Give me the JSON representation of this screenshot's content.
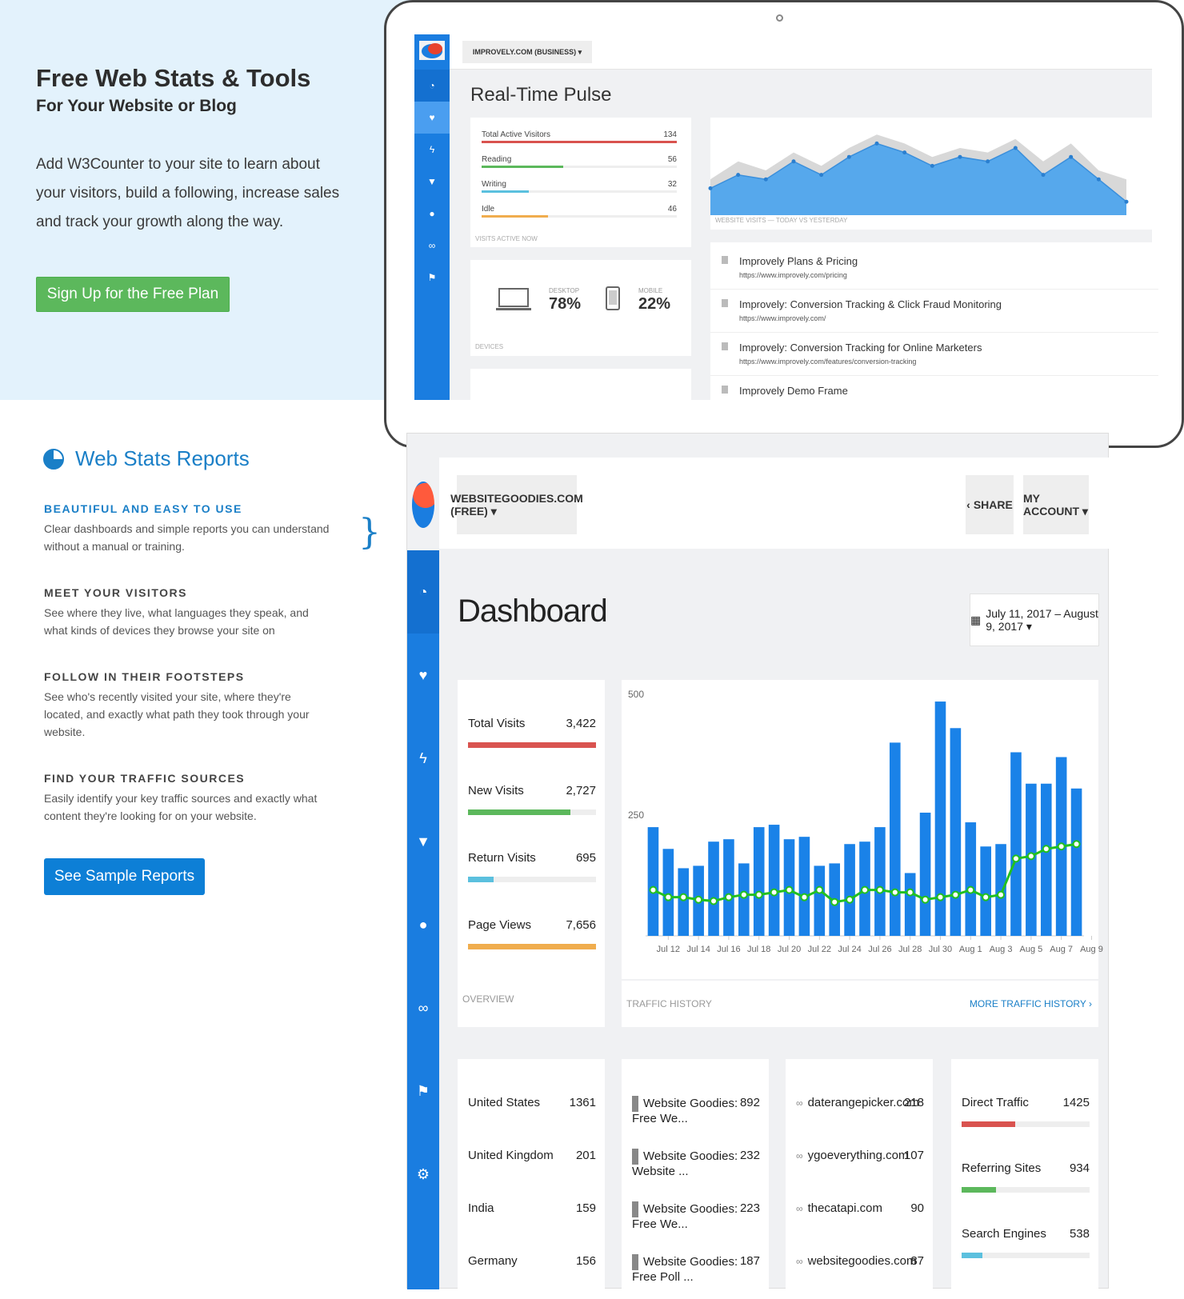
{
  "hero": {
    "title": "Free Web Stats & Tools",
    "subtitle": "For Your Website or Blog",
    "description": "Add W3Counter to your site to learn about your visitors, build a following, increase sales and track your growth along the way.",
    "cta_label": "Sign Up for the Free Plan"
  },
  "preview": {
    "site_selector": "IMPROVELY.COM (BUSINESS) ▾",
    "page_title": "Real-Time Pulse",
    "active": {
      "caption": "VISITS ACTIVE NOW",
      "rows": [
        {
          "label": "Total Active Visitors",
          "value": "134",
          "fill": 1.0,
          "color": "#d9534f"
        },
        {
          "label": "Reading",
          "value": "56",
          "fill": 0.42,
          "color": "#5cb85c"
        },
        {
          "label": "Writing",
          "value": "32",
          "fill": 0.24,
          "color": "#5bc0de"
        },
        {
          "label": "Idle",
          "value": "46",
          "fill": 0.34,
          "color": "#f0ad4e"
        }
      ]
    },
    "devices": {
      "caption": "DEVICES",
      "desktop_label": "DESKTOP",
      "desktop_value": "78%",
      "mobile_label": "MOBILE",
      "mobile_value": "22%"
    },
    "visits_caption": "WEBSITE VISITS — TODAY VS YESTERDAY",
    "pages": [
      {
        "title": "Improvely Plans & Pricing",
        "url": "https://www.improvely.com/pricing"
      },
      {
        "title": "Improvely: Conversion Tracking & Click Fraud Monitoring",
        "url": "https://www.improvely.com/"
      },
      {
        "title": "Improvely: Conversion Tracking for Online Marketers",
        "url": "https://www.improvely.com/features/conversion-tracking"
      },
      {
        "title": "Improvely Demo Frame",
        "url": ""
      }
    ]
  },
  "features": {
    "section_title": "Web Stats Reports",
    "items": [
      {
        "heading": "BEAUTIFUL AND EASY TO USE",
        "text": "Clear dashboards and simple reports you can understand without a manual or training."
      },
      {
        "heading": "MEET YOUR VISITORS",
        "text": "See where they live, what languages they speak, and what kinds of devices they browse your site on"
      },
      {
        "heading": "FOLLOW IN THEIR FOOTSTEPS",
        "text": "See who's recently visited your site, where they're located, and exactly what path they took through your website."
      },
      {
        "heading": "FIND YOUR TRAFFIC SOURCES",
        "text": "Easily identify your key traffic sources and exactly what content they're looking for on your website."
      }
    ],
    "cta_label": "See Sample Reports"
  },
  "dashboard": {
    "site_selector": "WEBSITEGOODIES.COM (FREE) ▾",
    "share_label": "SHARE",
    "account_label": "MY ACCOUNT ▾",
    "title": "Dashboard",
    "date_range": "July 11, 2017 – August 9, 2017 ▾",
    "overview": {
      "caption": "OVERVIEW",
      "rows": [
        {
          "label": "Total Visits",
          "value": "3,422",
          "fill": 1.0,
          "color": "#d9534f"
        },
        {
          "label": "New Visits",
          "value": "2,727",
          "fill": 0.8,
          "color": "#5cb85c"
        },
        {
          "label": "Return Visits",
          "value": "695",
          "fill": 0.2,
          "color": "#5bc0de"
        },
        {
          "label": "Page Views",
          "value": "7,656",
          "fill": 1.0,
          "color": "#f0ad4e"
        }
      ]
    },
    "traffic_caption": "TRAFFIC HISTORY",
    "more_link": "MORE TRAFFIC HISTORY ›",
    "countries": [
      {
        "label": "United States",
        "value": "1361"
      },
      {
        "label": "United Kingdom",
        "value": "201"
      },
      {
        "label": "India",
        "value": "159"
      },
      {
        "label": "Germany",
        "value": "156"
      }
    ],
    "pages": [
      {
        "label": "Website Goodies: Free We...",
        "value": "892"
      },
      {
        "label": "Website Goodies: Website ...",
        "value": "232"
      },
      {
        "label": "Website Goodies: Free We...",
        "value": "223"
      },
      {
        "label": "Website Goodies: Free Poll ...",
        "value": "187"
      }
    ],
    "referrers": [
      {
        "label": "daterangepicker.com",
        "value": "218"
      },
      {
        "label": "ygoeverything.com",
        "value": "107"
      },
      {
        "label": "thecatapi.com",
        "value": "90"
      },
      {
        "label": "websitegoodies.com",
        "value": "87"
      }
    ],
    "sources": [
      {
        "label": "Direct Traffic",
        "value": "1425",
        "fill": 0.42,
        "color": "#d9534f"
      },
      {
        "label": "Referring Sites",
        "value": "934",
        "fill": 0.27,
        "color": "#5cb85c"
      },
      {
        "label": "Search Engines",
        "value": "538",
        "fill": 0.16,
        "color": "#5bc0de"
      }
    ]
  },
  "chart_data": [
    {
      "type": "area",
      "title": "",
      "xlabel": "",
      "ylabel": "",
      "series": [
        {
          "values": [
            8,
            12,
            10,
            14,
            11,
            15,
            18,
            16,
            13,
            15,
            14,
            17,
            12,
            16,
            10,
            8
          ]
        },
        {
          "values": [
            6,
            9,
            8,
            12,
            9,
            13,
            16,
            14,
            11,
            13,
            12,
            15,
            9,
            13,
            8,
            3
          ]
        }
      ]
    },
    {
      "type": "bar",
      "title": "",
      "xlabel": "",
      "ylabel": "",
      "ylim": [
        0,
        500
      ],
      "yticks": [
        250,
        500
      ],
      "tick_labels": [
        "Jul 12",
        "Jul 14",
        "Jul 16",
        "Jul 18",
        "Jul 20",
        "Jul 22",
        "Jul 24",
        "Jul 26",
        "Jul 28",
        "Jul 30",
        "Aug 1",
        "Aug 3",
        "Aug 5",
        "Aug 7",
        "Aug 9"
      ],
      "series": [
        {
          "values": [
            225,
            180,
            140,
            145,
            195,
            200,
            150,
            225,
            230,
            200,
            205,
            145,
            150,
            190,
            195,
            225,
            400,
            130,
            255,
            485,
            430,
            235,
            185,
            190,
            380,
            315,
            315,
            370,
            305
          ]
        },
        {
          "values": [
            95,
            80,
            80,
            75,
            72,
            80,
            85,
            85,
            90,
            95,
            80,
            95,
            70,
            75,
            95,
            95,
            90,
            90,
            75,
            80,
            85,
            95,
            80,
            85,
            160,
            165,
            180,
            185,
            190
          ]
        }
      ]
    }
  ]
}
